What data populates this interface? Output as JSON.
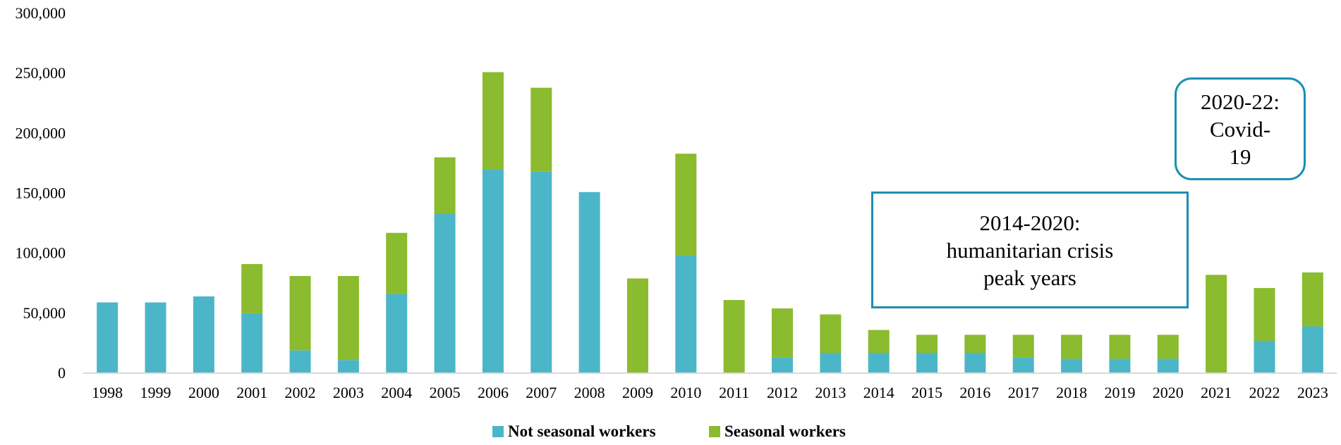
{
  "chart_data": {
    "type": "bar",
    "stacked": true,
    "categories": [
      "1998",
      "1999",
      "2000",
      "2001",
      "2002",
      "2003",
      "2004",
      "2005",
      "2006",
      "2007",
      "2008",
      "2009",
      "2010",
      "2011",
      "2012",
      "2013",
      "2014",
      "2015",
      "2016",
      "2017",
      "2018",
      "2019",
      "2020",
      "2021",
      "2022",
      "2023"
    ],
    "series": [
      {
        "name": "Not seasonal workers",
        "color": "#4bb6c8",
        "values": [
          59000,
          59000,
          64000,
          50000,
          19000,
          11000,
          66000,
          133000,
          170000,
          168000,
          151000,
          0,
          98000,
          0,
          13000,
          17000,
          17000,
          17000,
          17000,
          13000,
          12000,
          12000,
          12000,
          0,
          27000,
          39000
        ]
      },
      {
        "name": "Seasonal workers",
        "color": "#8bbb2e",
        "values": [
          0,
          0,
          0,
          41000,
          62000,
          70000,
          51000,
          47000,
          81000,
          70000,
          0,
          79000,
          85000,
          61000,
          41000,
          32000,
          19000,
          15000,
          15000,
          19000,
          20000,
          20000,
          20000,
          82000,
          44000,
          45000
        ]
      }
    ],
    "yticks": [
      "0",
      "50,000",
      "100,000",
      "150,000",
      "200,000",
      "250,000",
      "300,000"
    ],
    "ylim": [
      0,
      300000
    ],
    "grid": false,
    "legend_position": "bottom",
    "annotations": [
      "2020-22:\nCovid-\n19",
      "2014-2020:\nhumanitarian crisis\npeak years"
    ]
  },
  "colors": {
    "axis": "#d9d9d9",
    "box_border": "#1a8fb2"
  }
}
